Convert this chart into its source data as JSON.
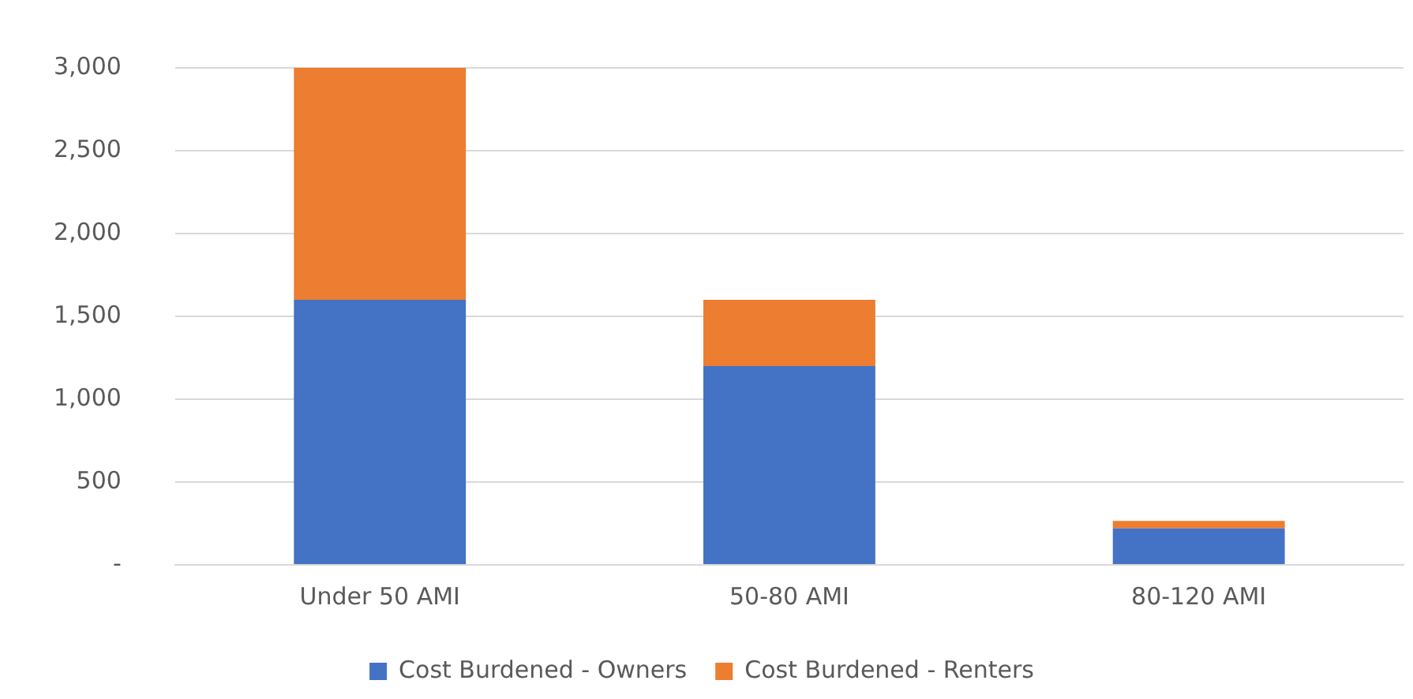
{
  "chart_data": {
    "type": "bar",
    "stacked": true,
    "categories": [
      "Under 50 AMI",
      "50-80 AMI",
      "80-120 AMI"
    ],
    "series": [
      {
        "name": "Cost Burdened - Owners",
        "color": "#4472c4",
        "values": [
          1600,
          1200,
          220
        ]
      },
      {
        "name": "Cost Burdened - Renters",
        "color": "#ed7d31",
        "values": [
          1400,
          400,
          45
        ]
      }
    ],
    "ylim": [
      0,
      3000
    ],
    "yticks": [
      {
        "value": 0,
        "label": "-"
      },
      {
        "value": 500,
        "label": "500"
      },
      {
        "value": 1000,
        "label": "1,000"
      },
      {
        "value": 1500,
        "label": "1,500"
      },
      {
        "value": 2000,
        "label": "2,000"
      },
      {
        "value": 2500,
        "label": "2,500"
      },
      {
        "value": 3000,
        "label": "3,000"
      }
    ],
    "grid": "y",
    "legend": "bottom"
  }
}
